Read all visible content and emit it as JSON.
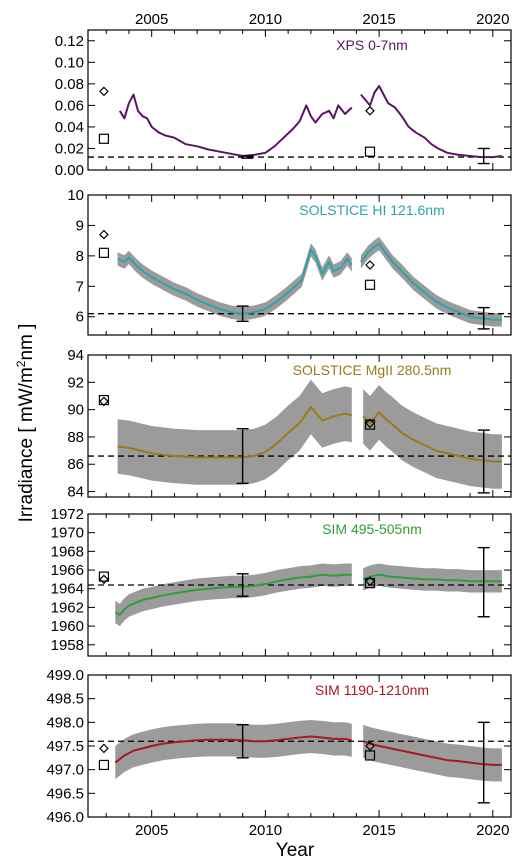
{
  "figure": {
    "ylabel_prefix": "Irradiance [ mW/m",
    "ylabel_sup": "2",
    "ylabel_suffix": "nm ]",
    "xlabel": "Year"
  },
  "chart_data": [
    {
      "type": "line",
      "label": "XPS 0-7nm",
      "color": "#5a1563",
      "xlim": [
        2002.2,
        2020.8
      ],
      "ylim": [
        0.0,
        0.13
      ],
      "xticks": [
        2005,
        2010,
        2015,
        2020
      ],
      "xtick_position": "top",
      "yticks": [
        0.0,
        0.02,
        0.04,
        0.06,
        0.08,
        0.1,
        0.12
      ],
      "ytick_labels": [
        "0.00",
        "0.02",
        "0.04",
        "0.06",
        "0.08",
        "0.10",
        "0.12"
      ],
      "band": false,
      "series": [
        {
          "x": [
            2003.6,
            2003.8,
            2004.0,
            2004.2,
            2004.4,
            2004.6,
            2004.8,
            2005.0,
            2005.3,
            2005.6,
            2006.0,
            2006.5,
            2007.0,
            2007.5,
            2008.0,
            2008.5,
            2009.0,
            2009.5,
            2010.0,
            2010.4,
            2010.8,
            2011.2,
            2011.5,
            2011.8,
            2012.0,
            2012.2,
            2012.5,
            2012.8,
            2013.0,
            2013.2,
            2013.5,
            2013.8
          ],
          "y": [
            0.055,
            0.048,
            0.062,
            0.07,
            0.055,
            0.05,
            0.048,
            0.04,
            0.035,
            0.032,
            0.03,
            0.024,
            0.022,
            0.019,
            0.017,
            0.015,
            0.013,
            0.014,
            0.016,
            0.022,
            0.03,
            0.038,
            0.045,
            0.06,
            0.05,
            0.044,
            0.052,
            0.055,
            0.048,
            0.06,
            0.052,
            0.058
          ]
        },
        {
          "x": [
            2014.2,
            2014.4,
            2014.6,
            2014.8,
            2015.0,
            2015.2,
            2015.4,
            2015.7,
            2016.0,
            2016.3,
            2016.6,
            2017.0,
            2017.3,
            2017.6,
            2018.0,
            2018.5,
            2019.0,
            2019.5,
            2020.0,
            2020.4
          ],
          "y": [
            0.07,
            0.065,
            0.06,
            0.072,
            0.078,
            0.07,
            0.062,
            0.058,
            0.05,
            0.04,
            0.035,
            0.03,
            0.024,
            0.02,
            0.016,
            0.014,
            0.013,
            0.012,
            0.012,
            0.013
          ]
        }
      ],
      "reference_line": 0.012,
      "diamond": [
        [
          2002.9,
          0.073
        ],
        [
          2014.6,
          0.055
        ]
      ],
      "square": [
        [
          2002.9,
          0.029
        ],
        [
          2014.6,
          0.017
        ]
      ],
      "errorbars": [
        [
          2009.2,
          0.012,
          0.001
        ],
        [
          2019.6,
          0.013,
          0.007
        ]
      ]
    },
    {
      "type": "line",
      "label": "SOLSTICE HI 121.6nm",
      "color": "#2ba4ad",
      "xlim": [
        2002.2,
        2020.8
      ],
      "ylim": [
        5.4,
        10.0
      ],
      "xticks": [
        2005,
        2010,
        2015,
        2020
      ],
      "yticks": [
        6,
        7,
        8,
        9,
        10
      ],
      "ytick_labels": [
        "6",
        "7",
        "8",
        "9",
        "10"
      ],
      "band": true,
      "band_halfwidth": 0.22,
      "series": [
        {
          "x": [
            2003.5,
            2003.8,
            2004.0,
            2004.3,
            2004.6,
            2005.0,
            2005.5,
            2006.0,
            2006.5,
            2007.0,
            2007.5,
            2008.0,
            2008.5,
            2009.0,
            2009.5,
            2010.0,
            2010.5,
            2011.0,
            2011.3,
            2011.6,
            2012.0,
            2012.2,
            2012.5,
            2012.8,
            2013.0,
            2013.3,
            2013.6,
            2013.8
          ],
          "y": [
            7.9,
            7.8,
            7.95,
            7.7,
            7.5,
            7.3,
            7.1,
            6.9,
            6.75,
            6.55,
            6.4,
            6.25,
            6.15,
            6.1,
            6.15,
            6.25,
            6.5,
            6.8,
            7.0,
            7.2,
            8.2,
            8.0,
            7.4,
            7.8,
            7.5,
            7.6,
            7.9,
            7.7
          ]
        },
        {
          "x": [
            2014.2,
            2014.5,
            2014.8,
            2015.0,
            2015.3,
            2015.6,
            2016.0,
            2016.5,
            2017.0,
            2017.5,
            2018.0,
            2018.5,
            2019.0,
            2019.5,
            2020.0,
            2020.4
          ],
          "y": [
            7.8,
            8.1,
            8.3,
            8.4,
            8.1,
            7.8,
            7.5,
            7.1,
            6.8,
            6.5,
            6.3,
            6.15,
            6.0,
            5.95,
            5.9,
            5.9
          ]
        }
      ],
      "reference_line": 6.1,
      "diamond": [
        [
          2002.9,
          8.7
        ],
        [
          2014.6,
          7.7
        ]
      ],
      "square": [
        [
          2002.9,
          8.1
        ],
        [
          2014.6,
          7.05
        ]
      ],
      "errorbars": [
        [
          2009.0,
          6.1,
          0.25
        ],
        [
          2019.6,
          5.95,
          0.35
        ]
      ]
    },
    {
      "type": "line",
      "label": "SOLSTICE MgII 280.5nm",
      "color": "#9a7a18",
      "xlim": [
        2002.2,
        2020.8
      ],
      "ylim": [
        83.6,
        94.0
      ],
      "xticks": [
        2005,
        2010,
        2015,
        2020
      ],
      "yticks": [
        84,
        86,
        88,
        90,
        92,
        94
      ],
      "ytick_labels": [
        "84",
        "86",
        "88",
        "90",
        "92",
        "94"
      ],
      "band": true,
      "band_halfwidth": 2.0,
      "series": [
        {
          "x": [
            2003.5,
            2004.0,
            2004.5,
            2005.0,
            2005.5,
            2006.0,
            2006.5,
            2007.0,
            2007.5,
            2008.0,
            2008.5,
            2009.0,
            2009.5,
            2010.0,
            2010.5,
            2011.0,
            2011.5,
            2012.0,
            2012.5,
            2013.0,
            2013.5,
            2013.8
          ],
          "y": [
            87.3,
            87.2,
            87.0,
            86.8,
            86.7,
            86.6,
            86.55,
            86.5,
            86.5,
            86.5,
            86.5,
            86.5,
            86.6,
            86.9,
            87.5,
            88.3,
            89.0,
            90.2,
            89.2,
            89.5,
            89.7,
            89.6
          ]
        },
        {
          "x": [
            2014.3,
            2014.6,
            2015.0,
            2015.3,
            2015.6,
            2016.0,
            2016.5,
            2017.0,
            2017.5,
            2018.0,
            2018.5,
            2019.0,
            2019.5,
            2020.0,
            2020.4
          ],
          "y": [
            89.5,
            89.0,
            89.8,
            89.3,
            88.9,
            88.3,
            87.8,
            87.4,
            87.0,
            86.8,
            86.6,
            86.4,
            86.3,
            86.2,
            86.2
          ]
        }
      ],
      "reference_line": 86.6,
      "diamond": [
        [
          2002.9,
          90.6
        ],
        [
          2014.6,
          89.0
        ]
      ],
      "square": [
        [
          2002.9,
          90.7
        ],
        [
          2014.6,
          88.9
        ]
      ],
      "errorbars": [
        [
          2009.0,
          86.6,
          2.0
        ],
        [
          2019.6,
          86.2,
          2.3
        ]
      ]
    },
    {
      "type": "line",
      "label": "SIM 495-505nm",
      "color": "#2e9e3a",
      "xlim": [
        2002.2,
        2020.8
      ],
      "ylim": [
        1956.8,
        1972.0
      ],
      "xticks": [
        2005,
        2010,
        2015,
        2020
      ],
      "yticks": [
        1958,
        1960,
        1962,
        1964,
        1966,
        1968,
        1970,
        1972
      ],
      "ytick_labels": [
        "1958",
        "1960",
        "1962",
        "1964",
        "1966",
        "1968",
        "1970",
        "1972"
      ],
      "band": true,
      "band_halfwidth": 1.2,
      "series": [
        {
          "x": [
            2003.4,
            2003.6,
            2003.8,
            2004.0,
            2004.3,
            2004.6,
            2005.0,
            2005.5,
            2006.0,
            2006.5,
            2007.0,
            2007.5,
            2008.0,
            2008.5,
            2009.0,
            2009.5,
            2010.0,
            2010.5,
            2011.0,
            2011.5,
            2012.0,
            2012.5,
            2013.0,
            2013.5,
            2013.8
          ],
          "y": [
            1961.5,
            1961.2,
            1961.8,
            1962.2,
            1962.5,
            1962.8,
            1963.0,
            1963.3,
            1963.5,
            1963.7,
            1963.9,
            1964.0,
            1964.1,
            1964.2,
            1964.2,
            1964.3,
            1964.5,
            1964.8,
            1965.0,
            1965.2,
            1965.3,
            1965.5,
            1965.4,
            1965.5,
            1965.5
          ]
        },
        {
          "x": [
            2014.3,
            2014.6,
            2015.0,
            2015.5,
            2016.0,
            2016.5,
            2017.0,
            2017.5,
            2018.0,
            2018.5,
            2019.0,
            2019.5,
            2020.0,
            2020.4
          ],
          "y": [
            1965.0,
            1965.3,
            1965.5,
            1965.3,
            1965.2,
            1965.1,
            1965.0,
            1965.0,
            1964.9,
            1964.9,
            1964.8,
            1964.8,
            1964.8,
            1964.8
          ]
        }
      ],
      "reference_line": 1964.4,
      "diamond": [
        [
          2002.9,
          1965.0
        ],
        [
          2014.6,
          1964.8
        ]
      ],
      "square": [
        [
          2002.9,
          1965.3
        ],
        [
          2014.6,
          1964.6
        ]
      ],
      "errorbars": [
        [
          2009.0,
          1964.4,
          1.2
        ],
        [
          2019.6,
          1964.7,
          3.7
        ]
      ]
    },
    {
      "type": "line",
      "label": "SIM 1190-1210nm",
      "color": "#a8181d",
      "xlim": [
        2002.2,
        2020.8
      ],
      "ylim": [
        496.0,
        499.0
      ],
      "xticks": [
        2005,
        2010,
        2015,
        2020
      ],
      "xtick_labels_visible": true,
      "yticks": [
        496.0,
        496.5,
        497.0,
        497.5,
        498.0,
        498.5,
        499.0
      ],
      "ytick_labels": [
        "496.0",
        "496.5",
        "497.0",
        "497.5",
        "498.0",
        "498.5",
        "499.0"
      ],
      "band": true,
      "band_halfwidth": 0.35,
      "series": [
        {
          "x": [
            2003.4,
            2003.8,
            2004.2,
            2004.6,
            2005.0,
            2005.5,
            2006.0,
            2006.5,
            2007.0,
            2007.5,
            2008.0,
            2008.5,
            2009.0,
            2009.5,
            2010.0,
            2010.5,
            2011.0,
            2011.5,
            2012.0,
            2012.5,
            2013.0,
            2013.5,
            2013.8
          ],
          "y": [
            497.15,
            497.3,
            497.4,
            497.45,
            497.5,
            497.55,
            497.58,
            497.6,
            497.62,
            497.63,
            497.63,
            497.63,
            497.62,
            497.6,
            497.6,
            497.62,
            497.65,
            497.68,
            497.7,
            497.68,
            497.65,
            497.65,
            497.62
          ]
        },
        {
          "x": [
            2014.3,
            2014.6,
            2015.0,
            2015.5,
            2016.0,
            2016.5,
            2017.0,
            2017.5,
            2018.0,
            2018.5,
            2019.0,
            2019.5,
            2020.0,
            2020.4
          ],
          "y": [
            497.6,
            497.55,
            497.5,
            497.45,
            497.4,
            497.35,
            497.3,
            497.25,
            497.2,
            497.18,
            497.15,
            497.12,
            497.1,
            497.1
          ]
        }
      ],
      "reference_line": 497.6,
      "diamond": [
        [
          2002.9,
          497.45
        ],
        [
          2014.6,
          497.5
        ]
      ],
      "square": [
        [
          2002.9,
          497.1
        ],
        [
          2014.6,
          497.3
        ]
      ],
      "errorbars": [
        [
          2009.0,
          497.6,
          0.35
        ],
        [
          2019.6,
          497.15,
          0.85
        ]
      ]
    }
  ]
}
